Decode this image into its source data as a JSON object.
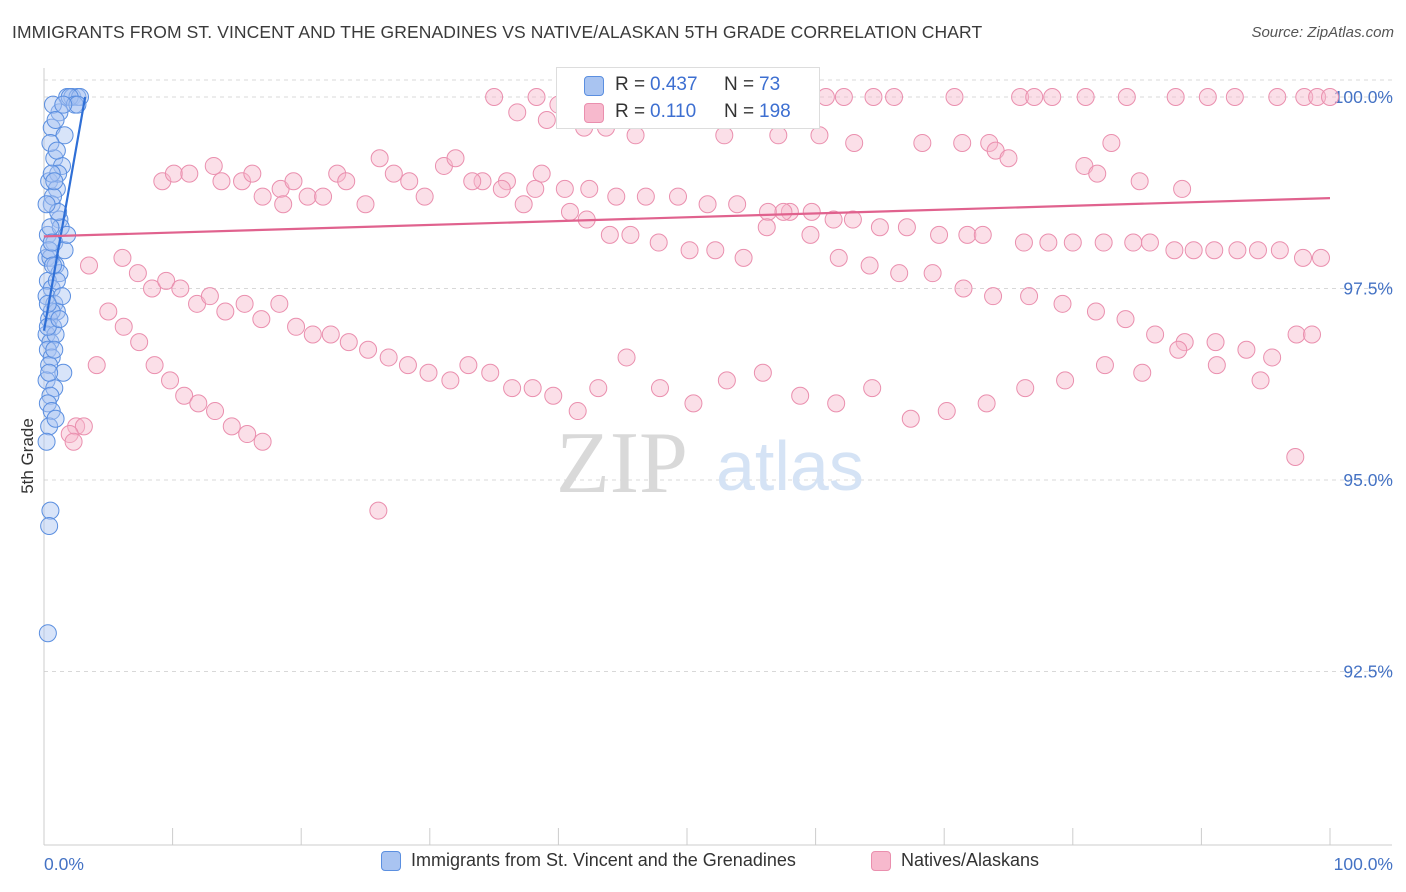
{
  "header": {
    "title": "IMMIGRANTS FROM ST. VINCENT AND THE GRENADINES VS NATIVE/ALASKAN 5TH GRADE CORRELATION CHART",
    "source": "Source: ZipAtlas.com"
  },
  "watermark": {
    "zip": "ZIP",
    "atlas": "atlas"
  },
  "stats_legend": [
    {
      "r_label": "R =",
      "r_value": "0.437",
      "n_label": "N =",
      "n_value": "73"
    },
    {
      "r_label": "R =",
      "r_value": "0.110",
      "n_label": "N =",
      "n_value": "198"
    }
  ],
  "bottom_legend": [
    {
      "label": "Immigrants from St. Vincent and the Grenadines"
    },
    {
      "label": "Natives/Alaskans"
    }
  ],
  "colors": {
    "blue_fill": "#a9c4f1",
    "blue_stroke": "#5b8fe0",
    "blue_line": "#2f6fd6",
    "pink_fill": "#f7b9cd",
    "pink_stroke": "#ea8fae",
    "pink_line": "#e0628e",
    "axis_label": "#4472c4",
    "grid": "#d8d8d8"
  },
  "chart_data": {
    "type": "scatter",
    "ylabel": "5th Grade",
    "xlim": [
      0,
      100
    ],
    "ylim": [
      90,
      100.4
    ],
    "x_tick_labels": [
      "0.0%",
      "100.0%"
    ],
    "y_ticks": [
      {
        "value": 100.0,
        "label": "100.0%"
      },
      {
        "value": 97.5,
        "label": "97.5%"
      },
      {
        "value": 95.0,
        "label": "95.0%"
      },
      {
        "value": 92.5,
        "label": "92.5%"
      }
    ],
    "legend_position": "top-center",
    "grid": true,
    "series": [
      {
        "name": "Immigrants from St. Vincent and the Grenadines",
        "color": "blue",
        "points": [
          [
            1.8,
            100.0
          ],
          [
            2.2,
            100.0
          ],
          [
            2.6,
            100.0
          ],
          [
            2.8,
            100.0
          ],
          [
            1.2,
            99.8
          ],
          [
            0.6,
            99.6
          ],
          [
            1.6,
            99.5
          ],
          [
            0.8,
            99.2
          ],
          [
            1.4,
            99.1
          ],
          [
            0.4,
            98.9
          ],
          [
            1.0,
            98.8
          ],
          [
            0.6,
            98.6
          ],
          [
            1.2,
            98.4
          ],
          [
            0.3,
            98.2
          ],
          [
            0.8,
            98.1
          ],
          [
            1.6,
            98.0
          ],
          [
            0.2,
            97.9
          ],
          [
            0.5,
            97.9
          ],
          [
            0.9,
            97.8
          ],
          [
            1.2,
            97.7
          ],
          [
            0.3,
            97.6
          ],
          [
            0.6,
            97.5
          ],
          [
            0.2,
            97.4
          ],
          [
            0.8,
            97.3
          ],
          [
            1.0,
            97.2
          ],
          [
            0.4,
            97.1
          ],
          [
            0.7,
            97.0
          ],
          [
            0.2,
            96.9
          ],
          [
            0.5,
            96.8
          ],
          [
            0.3,
            96.7
          ],
          [
            0.6,
            96.6
          ],
          [
            0.4,
            96.5
          ],
          [
            0.2,
            96.3
          ],
          [
            0.8,
            96.2
          ],
          [
            0.5,
            96.1
          ],
          [
            0.3,
            96.0
          ],
          [
            0.6,
            95.9
          ],
          [
            0.4,
            95.7
          ],
          [
            0.2,
            95.5
          ],
          [
            0.5,
            94.6
          ],
          [
            0.4,
            94.4
          ],
          [
            0.3,
            93.0
          ],
          [
            0.7,
            99.9
          ],
          [
            0.9,
            99.7
          ],
          [
            0.5,
            99.4
          ],
          [
            1.1,
            99.0
          ],
          [
            0.7,
            98.7
          ],
          [
            1.3,
            98.3
          ],
          [
            0.4,
            98.0
          ],
          [
            1.0,
            97.6
          ],
          [
            0.6,
            97.2
          ],
          [
            0.9,
            96.9
          ],
          [
            1.5,
            96.4
          ],
          [
            2.0,
            100.0
          ],
          [
            2.4,
            99.9
          ],
          [
            1.1,
            98.5
          ],
          [
            0.3,
            97.0
          ],
          [
            0.8,
            96.7
          ],
          [
            0.5,
            98.3
          ],
          [
            1.4,
            97.4
          ],
          [
            0.6,
            99.0
          ],
          [
            1.0,
            99.3
          ],
          [
            0.2,
            98.6
          ],
          [
            0.7,
            97.8
          ],
          [
            1.2,
            97.1
          ],
          [
            0.4,
            96.4
          ],
          [
            0.9,
            95.8
          ],
          [
            0.3,
            97.3
          ],
          [
            0.6,
            98.1
          ],
          [
            1.8,
            98.2
          ],
          [
            2.6,
            99.9
          ],
          [
            1.5,
            99.9
          ],
          [
            0.8,
            98.9
          ]
        ]
      },
      {
        "name": "Natives/Alaskans",
        "color": "pink",
        "points": [
          [
            35.0,
            100.0
          ],
          [
            38.3,
            100.0
          ],
          [
            40.0,
            99.9
          ],
          [
            43.0,
            100.0
          ],
          [
            47.2,
            100.0
          ],
          [
            48.5,
            100.0
          ],
          [
            49.2,
            100.0
          ],
          [
            50.1,
            100.0
          ],
          [
            52.3,
            100.0
          ],
          [
            55.6,
            100.0
          ],
          [
            58.4,
            100.0
          ],
          [
            60.8,
            100.0
          ],
          [
            62.2,
            100.0
          ],
          [
            64.5,
            100.0
          ],
          [
            66.1,
            100.0
          ],
          [
            70.8,
            100.0
          ],
          [
            75.9,
            100.0
          ],
          [
            77.0,
            100.0
          ],
          [
            78.4,
            100.0
          ],
          [
            81.0,
            100.0
          ],
          [
            84.2,
            100.0
          ],
          [
            88.0,
            100.0
          ],
          [
            90.5,
            100.0
          ],
          [
            92.6,
            100.0
          ],
          [
            95.9,
            100.0
          ],
          [
            98.0,
            100.0
          ],
          [
            99.0,
            100.0
          ],
          [
            100.0,
            100.0
          ],
          [
            50.8,
            99.9
          ],
          [
            55.0,
            99.9
          ],
          [
            36.8,
            99.8
          ],
          [
            39.1,
            99.7
          ],
          [
            41.2,
            99.7
          ],
          [
            42.0,
            99.6
          ],
          [
            43.7,
            99.6
          ],
          [
            46.0,
            99.5
          ],
          [
            52.9,
            99.5
          ],
          [
            57.1,
            99.5
          ],
          [
            60.3,
            99.5
          ],
          [
            63.0,
            99.4
          ],
          [
            68.3,
            99.4
          ],
          [
            71.4,
            99.4
          ],
          [
            73.5,
            99.4
          ],
          [
            83.0,
            99.4
          ],
          [
            74.0,
            99.3
          ],
          [
            75.0,
            99.2
          ],
          [
            80.9,
            99.1
          ],
          [
            81.9,
            99.0
          ],
          [
            85.2,
            98.9
          ],
          [
            88.5,
            98.8
          ],
          [
            34.1,
            98.9
          ],
          [
            36.0,
            98.9
          ],
          [
            38.2,
            98.8
          ],
          [
            40.5,
            98.8
          ],
          [
            42.4,
            98.8
          ],
          [
            44.5,
            98.7
          ],
          [
            46.8,
            98.7
          ],
          [
            49.3,
            98.7
          ],
          [
            51.6,
            98.6
          ],
          [
            53.9,
            98.6
          ],
          [
            56.3,
            98.5
          ],
          [
            58.0,
            98.5
          ],
          [
            59.7,
            98.5
          ],
          [
            61.4,
            98.4
          ],
          [
            62.9,
            98.4
          ],
          [
            65.0,
            98.3
          ],
          [
            67.1,
            98.3
          ],
          [
            69.6,
            98.2
          ],
          [
            71.8,
            98.2
          ],
          [
            73.0,
            98.2
          ],
          [
            76.2,
            98.1
          ],
          [
            78.1,
            98.1
          ],
          [
            80.0,
            98.1
          ],
          [
            82.4,
            98.1
          ],
          [
            84.7,
            98.1
          ],
          [
            86.0,
            98.1
          ],
          [
            87.9,
            98.0
          ],
          [
            89.4,
            98.0
          ],
          [
            91.0,
            98.0
          ],
          [
            92.8,
            98.0
          ],
          [
            94.4,
            98.0
          ],
          [
            96.1,
            98.0
          ],
          [
            97.9,
            97.9
          ],
          [
            99.3,
            97.9
          ],
          [
            9.2,
            98.9
          ],
          [
            10.1,
            99.0
          ],
          [
            11.3,
            99.0
          ],
          [
            13.2,
            99.1
          ],
          [
            13.8,
            98.9
          ],
          [
            15.4,
            98.9
          ],
          [
            16.2,
            99.0
          ],
          [
            17.0,
            98.7
          ],
          [
            18.4,
            98.8
          ],
          [
            18.6,
            98.6
          ],
          [
            19.4,
            98.9
          ],
          [
            20.5,
            98.7
          ],
          [
            21.7,
            98.7
          ],
          [
            22.8,
            99.0
          ],
          [
            23.5,
            98.9
          ],
          [
            25.0,
            98.6
          ],
          [
            26.1,
            99.2
          ],
          [
            27.2,
            99.0
          ],
          [
            28.4,
            98.9
          ],
          [
            29.6,
            98.7
          ],
          [
            31.1,
            99.1
          ],
          [
            32.0,
            99.2
          ],
          [
            33.3,
            98.9
          ],
          [
            35.6,
            98.8
          ],
          [
            37.3,
            98.6
          ],
          [
            38.7,
            99.0
          ],
          [
            40.9,
            98.5
          ],
          [
            42.2,
            98.4
          ],
          [
            44.0,
            98.2
          ],
          [
            45.6,
            98.2
          ],
          [
            47.8,
            98.1
          ],
          [
            50.2,
            98.0
          ],
          [
            52.2,
            98.0
          ],
          [
            54.4,
            97.9
          ],
          [
            56.2,
            98.3
          ],
          [
            57.5,
            98.5
          ],
          [
            59.6,
            98.2
          ],
          [
            61.8,
            97.9
          ],
          [
            64.2,
            97.8
          ],
          [
            66.5,
            97.7
          ],
          [
            69.1,
            97.7
          ],
          [
            71.5,
            97.5
          ],
          [
            73.8,
            97.4
          ],
          [
            76.6,
            97.4
          ],
          [
            79.2,
            97.3
          ],
          [
            81.8,
            97.2
          ],
          [
            84.1,
            97.1
          ],
          [
            86.4,
            96.9
          ],
          [
            88.7,
            96.8
          ],
          [
            91.1,
            96.8
          ],
          [
            93.5,
            96.7
          ],
          [
            95.5,
            96.6
          ],
          [
            97.4,
            96.9
          ],
          [
            98.6,
            96.9
          ],
          [
            6.1,
            97.9
          ],
          [
            7.3,
            97.7
          ],
          [
            8.4,
            97.5
          ],
          [
            9.5,
            97.6
          ],
          [
            10.6,
            97.5
          ],
          [
            11.9,
            97.3
          ],
          [
            12.9,
            97.4
          ],
          [
            14.1,
            97.2
          ],
          [
            15.6,
            97.3
          ],
          [
            16.9,
            97.1
          ],
          [
            18.3,
            97.3
          ],
          [
            19.6,
            97.0
          ],
          [
            20.9,
            96.9
          ],
          [
            22.3,
            96.9
          ],
          [
            23.7,
            96.8
          ],
          [
            25.2,
            96.7
          ],
          [
            26.8,
            96.6
          ],
          [
            28.3,
            96.5
          ],
          [
            29.9,
            96.4
          ],
          [
            31.6,
            96.3
          ],
          [
            33.0,
            96.5
          ],
          [
            34.7,
            96.4
          ],
          [
            36.4,
            96.2
          ],
          [
            38.0,
            96.2
          ],
          [
            39.6,
            96.1
          ],
          [
            41.5,
            95.9
          ],
          [
            43.1,
            96.2
          ],
          [
            45.3,
            96.6
          ],
          [
            47.9,
            96.2
          ],
          [
            50.5,
            96.0
          ],
          [
            53.1,
            96.3
          ],
          [
            55.9,
            96.4
          ],
          [
            58.8,
            96.1
          ],
          [
            61.6,
            96.0
          ],
          [
            64.4,
            96.2
          ],
          [
            67.4,
            95.8
          ],
          [
            70.2,
            95.9
          ],
          [
            73.3,
            96.0
          ],
          [
            76.3,
            96.2
          ],
          [
            79.4,
            96.3
          ],
          [
            82.5,
            96.5
          ],
          [
            85.4,
            96.4
          ],
          [
            88.2,
            96.7
          ],
          [
            91.2,
            96.5
          ],
          [
            94.6,
            96.3
          ],
          [
            97.3,
            95.3
          ],
          [
            3.5,
            97.8
          ],
          [
            5.0,
            97.2
          ],
          [
            6.2,
            97.0
          ],
          [
            7.4,
            96.8
          ],
          [
            8.6,
            96.5
          ],
          [
            9.8,
            96.3
          ],
          [
            10.9,
            96.1
          ],
          [
            12.0,
            96.0
          ],
          [
            13.3,
            95.9
          ],
          [
            14.6,
            95.7
          ],
          [
            15.8,
            95.6
          ],
          [
            17.0,
            95.5
          ],
          [
            2.5,
            95.7
          ],
          [
            3.1,
            95.7
          ],
          [
            2.0,
            95.6
          ],
          [
            2.3,
            95.5
          ],
          [
            4.1,
            96.5
          ],
          [
            26.0,
            94.6
          ]
        ]
      }
    ],
    "trendlines": [
      {
        "series": "Immigrants from St. Vincent and the Grenadines",
        "from": [
          0.0,
          96.95
        ],
        "to": [
          3.2,
          100.0
        ]
      },
      {
        "series": "Natives/Alaskans",
        "from": [
          0.0,
          98.18
        ],
        "to": [
          100.0,
          98.68
        ]
      }
    ]
  }
}
